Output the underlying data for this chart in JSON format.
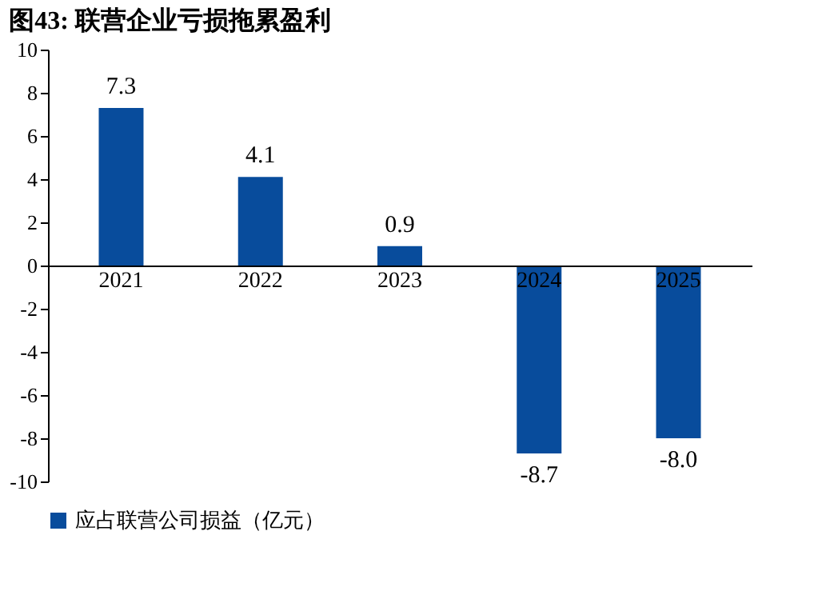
{
  "chart_data": {
    "type": "bar",
    "title": "图43:  联营企业亏损拖累盈利",
    "categories": [
      "2021",
      "2022",
      "2023",
      "2024",
      "2025"
    ],
    "series": [
      {
        "name": "应占联营公司损益（亿元）",
        "color": "#084c9c",
        "values": [
          7.3,
          4.1,
          0.9,
          -8.7,
          -8.0
        ]
      }
    ],
    "ylim": [
      -10,
      10
    ],
    "yticks": [
      -10,
      -8,
      -6,
      -4,
      -2,
      0,
      2,
      4,
      6,
      8,
      10
    ],
    "value_labels": [
      "7.3",
      "4.1",
      "0.9",
      "-8.7",
      "-8.0"
    ],
    "grid": false,
    "legend": "bottom"
  }
}
